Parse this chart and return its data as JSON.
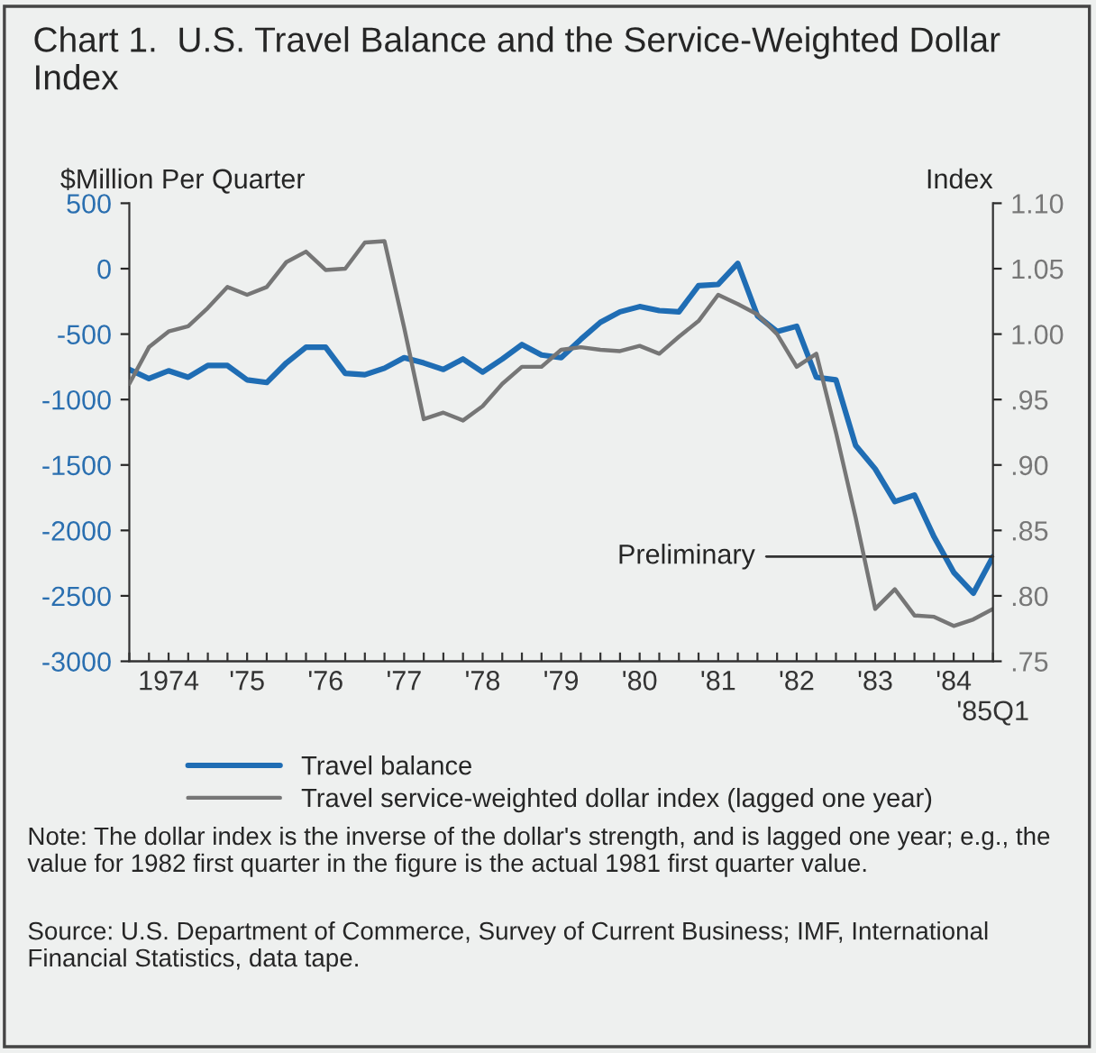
{
  "chart_data": {
    "type": "line",
    "title": "Chart 1.  U.S. Travel Balance and the Service-Weighted Dollar Index",
    "ylabel": "$Million Per Quarter",
    "y2label": "Index",
    "categories": [
      null,
      null,
      "1974",
      null,
      null,
      null,
      "'75",
      null,
      null,
      null,
      "'76",
      null,
      null,
      null,
      "'77",
      null,
      null,
      null,
      "'78",
      null,
      null,
      null,
      "'79",
      null,
      null,
      null,
      "'80",
      null,
      null,
      null,
      "'81",
      null,
      null,
      null,
      "'82",
      null,
      null,
      null,
      "'83",
      null,
      null,
      null,
      "'84",
      null,
      "'85Q1"
    ],
    "series": [
      {
        "name": "Travel balance",
        "color": "#1f6db4",
        "values": [
          -770,
          -840,
          -780,
          -830,
          -740,
          -740,
          -850,
          -870,
          -720,
          -600,
          -600,
          -800,
          -810,
          -760,
          -680,
          -720,
          -770,
          -690,
          -790,
          -690,
          -580,
          -660,
          -680,
          -540,
          -410,
          -330,
          -290,
          -320,
          -330,
          -130,
          -120,
          40,
          -360,
          -480,
          -440,
          -830,
          -850,
          -1350,
          -1530,
          -1780,
          -1730,
          -2050,
          -2320,
          -2480,
          -2200
        ]
      },
      {
        "name": "Travel service-weighted dollar index (lagged one year)",
        "color": "#767676",
        "axis": "y2",
        "values": [
          0.962,
          0.99,
          1.002,
          1.006,
          1.02,
          1.036,
          1.03,
          1.036,
          1.055,
          1.063,
          1.049,
          1.05,
          1.07,
          1.071,
          1.005,
          0.935,
          0.94,
          0.934,
          0.945,
          0.962,
          0.975,
          0.975,
          0.988,
          0.99,
          0.988,
          0.987,
          0.991,
          0.985,
          0.998,
          1.01,
          1.03,
          1.023,
          1.015,
          1.0,
          0.975,
          0.985,
          0.925,
          0.86,
          0.79,
          0.805,
          0.785,
          0.784,
          0.777,
          0.782,
          0.79
        ]
      }
    ],
    "ylim": [
      -3000,
      500
    ],
    "yticks": [
      -3000,
      -2500,
      -2000,
      -1500,
      -1000,
      -500,
      0,
      500
    ],
    "y2lim": [
      0.75,
      1.1
    ],
    "y2ticks": [
      {
        "value": 0.75,
        "label": ".75"
      },
      {
        "value": 0.8,
        "label": ".80"
      },
      {
        "value": 0.85,
        "label": ".85"
      },
      {
        "value": 0.9,
        "label": ".90"
      },
      {
        "value": 0.95,
        "label": ".95"
      },
      {
        "value": 1.0,
        "label": "1.00"
      },
      {
        "value": 1.05,
        "label": "1.05"
      },
      {
        "value": 1.1,
        "label": "1.10"
      }
    ],
    "grid": false,
    "legend": "bottom",
    "marker": "none",
    "line_style": "solid",
    "annotations": [
      {
        "text": "Preliminary",
        "x": "'85Q1",
        "y": -2200
      },
      "Note: The dollar index is the inverse of the dollar's strength, and is lagged one year; e.g., the value for 1982 first quarter in the figure is the actual 1981 first quarter value.",
      "Source: U.S. Department of Commerce, Survey of Current Business; IMF, International Financial Statistics, data tape."
    ]
  }
}
